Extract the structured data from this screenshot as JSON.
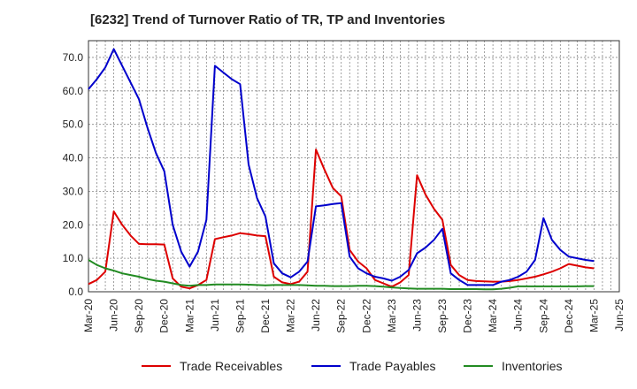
{
  "chart_data": {
    "type": "line",
    "title": "[6232]  Trend of Turnover Ratio of TR, TP and Inventories",
    "xlabel": "",
    "ylabel": "",
    "ylim": [
      0,
      75
    ],
    "yticks": [
      "0.0",
      "10.0",
      "20.0",
      "30.0",
      "40.0",
      "50.0",
      "60.0",
      "70.0"
    ],
    "xticks": [
      "Mar-20",
      "Jun-20",
      "Sep-20",
      "Dec-20",
      "Mar-21",
      "Jun-21",
      "Sep-21",
      "Dec-21",
      "Mar-22",
      "Jun-22",
      "Sep-22",
      "Dec-22",
      "Mar-23",
      "Jun-23",
      "Sep-23",
      "Dec-23",
      "Mar-24",
      "Jun-24",
      "Sep-24",
      "Dec-24",
      "Mar-25",
      "Jun-25"
    ],
    "grid": true,
    "legend_position": "bottom",
    "x": [
      "Mar-20",
      "Apr-20",
      "May-20",
      "Jun-20",
      "Jul-20",
      "Aug-20",
      "Sep-20",
      "Oct-20",
      "Nov-20",
      "Dec-20",
      "Jan-21",
      "Feb-21",
      "Mar-21",
      "Apr-21",
      "May-21",
      "Jun-21",
      "Jul-21",
      "Aug-21",
      "Sep-21",
      "Oct-21",
      "Nov-21",
      "Dec-21",
      "Jan-22",
      "Feb-22",
      "Mar-22",
      "Apr-22",
      "May-22",
      "Jun-22",
      "Jul-22",
      "Aug-22",
      "Sep-22",
      "Oct-22",
      "Nov-22",
      "Dec-22",
      "Jan-23",
      "Feb-23",
      "Mar-23",
      "Apr-23",
      "May-23",
      "Jun-23",
      "Jul-23",
      "Aug-23",
      "Sep-23",
      "Oct-23",
      "Nov-23",
      "Dec-23",
      "Jan-24",
      "Feb-24",
      "Mar-24",
      "Apr-24",
      "May-24",
      "Jun-24",
      "Jul-24",
      "Aug-24",
      "Sep-24",
      "Oct-24",
      "Nov-24",
      "Dec-24",
      "Jan-25",
      "Feb-25",
      "Mar-25"
    ],
    "series": [
      {
        "name": "Trade Receivables",
        "color": "#dd0000",
        "values": [
          2.3,
          3.5,
          6.0,
          24.0,
          20.0,
          16.8,
          14.3,
          14.2,
          14.2,
          14.1,
          4.0,
          1.5,
          1.0,
          2.0,
          3.5,
          15.7,
          16.3,
          16.8,
          17.5,
          17.2,
          16.8,
          16.6,
          4.5,
          2.8,
          2.3,
          3.0,
          6.0,
          42.5,
          36.5,
          31.0,
          28.5,
          12.5,
          9.0,
          7.0,
          3.5,
          2.5,
          1.5,
          2.8,
          5.0,
          34.8,
          29.0,
          24.8,
          21.5,
          8.0,
          5.0,
          3.5,
          3.2,
          3.1,
          3.0,
          3.0,
          3.2,
          3.5,
          4.0,
          4.5,
          5.2,
          6.0,
          7.0,
          8.3,
          7.8,
          7.3,
          7.0
        ]
      },
      {
        "name": "Trade Payables",
        "color": "#0000cc",
        "values": [
          60.5,
          63.5,
          67.0,
          72.5,
          67.5,
          62.5,
          57.5,
          49.0,
          41.5,
          36.0,
          20.0,
          12.0,
          7.5,
          12.0,
          21.5,
          67.5,
          65.5,
          63.5,
          62.0,
          38.0,
          28.0,
          22.5,
          8.5,
          5.5,
          4.3,
          6.0,
          9.0,
          25.5,
          25.8,
          26.2,
          26.5,
          10.5,
          7.0,
          5.5,
          4.5,
          4.0,
          3.3,
          4.5,
          6.5,
          11.5,
          13.2,
          15.5,
          18.8,
          5.5,
          3.5,
          2.0,
          2.0,
          2.0,
          2.0,
          3.0,
          3.5,
          4.5,
          6.0,
          9.5,
          22.0,
          15.5,
          12.5,
          10.5,
          10.0,
          9.5,
          9.2
        ]
      },
      {
        "name": "Inventories",
        "color": "#228B22",
        "values": [
          9.5,
          8.0,
          7.0,
          6.3,
          5.5,
          5.0,
          4.5,
          3.8,
          3.3,
          3.0,
          2.5,
          2.0,
          1.8,
          2.0,
          2.0,
          2.2,
          2.2,
          2.2,
          2.2,
          2.1,
          2.0,
          1.9,
          2.0,
          2.0,
          2.0,
          2.0,
          1.9,
          1.8,
          1.8,
          1.7,
          1.7,
          1.7,
          1.8,
          1.8,
          1.7,
          1.5,
          1.3,
          1.1,
          1.0,
          0.9,
          0.9,
          0.9,
          0.9,
          0.8,
          0.8,
          0.8,
          0.8,
          0.7,
          0.7,
          0.9,
          1.2,
          1.6,
          1.6,
          1.6,
          1.6,
          1.6,
          1.6,
          1.6,
          1.6,
          1.7,
          1.7
        ]
      }
    ]
  }
}
